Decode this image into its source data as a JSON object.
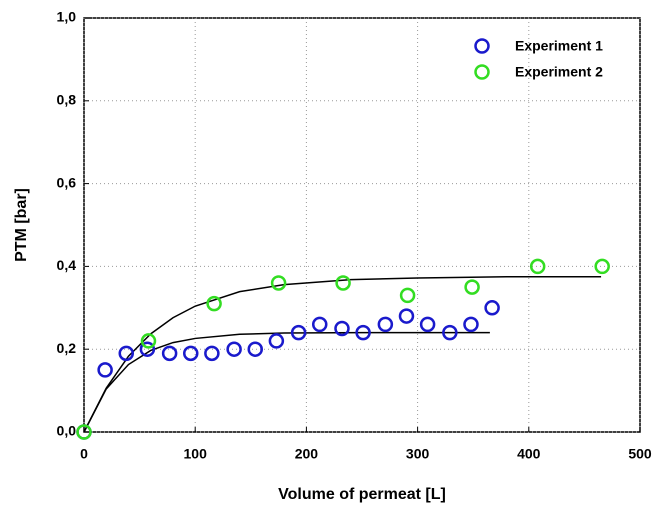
{
  "chart_data": {
    "type": "scatter",
    "xlabel": "Volume of permeat [L]",
    "ylabel": "PTM [bar]",
    "xlim": [
      0,
      500
    ],
    "xticks": [
      0,
      100,
      200,
      300,
      400,
      500
    ],
    "ylim": [
      0,
      1
    ],
    "yticks": [
      {
        "value": 0,
        "label": "0,0"
      },
      {
        "value": 0.2,
        "label": "0,2"
      },
      {
        "value": 0.4,
        "label": "0,4"
      },
      {
        "value": 0.6,
        "label": "0,6"
      },
      {
        "value": 0.8,
        "label": "0,8"
      },
      {
        "value": 1,
        "label": "1,0"
      }
    ],
    "grid": true,
    "legend": "upper right",
    "series": [
      {
        "name": "Experiment 1",
        "color": "#1a1acc",
        "x": [
          0,
          19,
          38,
          57,
          77,
          96,
          115,
          135,
          154,
          173,
          193,
          212,
          232,
          251,
          271,
          290,
          309,
          329,
          348,
          367
        ],
        "values": [
          0,
          0.15,
          0.19,
          0.2,
          0.19,
          0.19,
          0.19,
          0.2,
          0.2,
          0.22,
          0.24,
          0.26,
          0.25,
          0.24,
          0.26,
          0.28,
          0.26,
          0.24,
          0.26,
          0.3
        ]
      },
      {
        "name": "Experiment 2",
        "color": "#33dd22",
        "x": [
          0,
          58,
          117,
          175,
          233,
          291,
          349,
          408,
          466
        ],
        "values": [
          0,
          0.22,
          0.31,
          0.36,
          0.36,
          0.33,
          0.35,
          0.4,
          0.4
        ]
      }
    ],
    "fit_lines": [
      {
        "color": "#000000",
        "x": [
          0,
          20,
          40,
          60,
          80,
          100,
          140,
          180,
          250,
          365
        ],
        "values": [
          0,
          0.104,
          0.163,
          0.197,
          0.216,
          0.226,
          0.236,
          0.239,
          0.24,
          0.24
        ]
      },
      {
        "color": "#000000",
        "x": [
          0,
          20,
          40,
          60,
          80,
          100,
          140,
          180,
          240,
          300,
          380,
          465
        ],
        "values": [
          0,
          0.106,
          0.183,
          0.237,
          0.276,
          0.304,
          0.339,
          0.356,
          0.368,
          0.372,
          0.375,
          0.375
        ]
      }
    ]
  }
}
